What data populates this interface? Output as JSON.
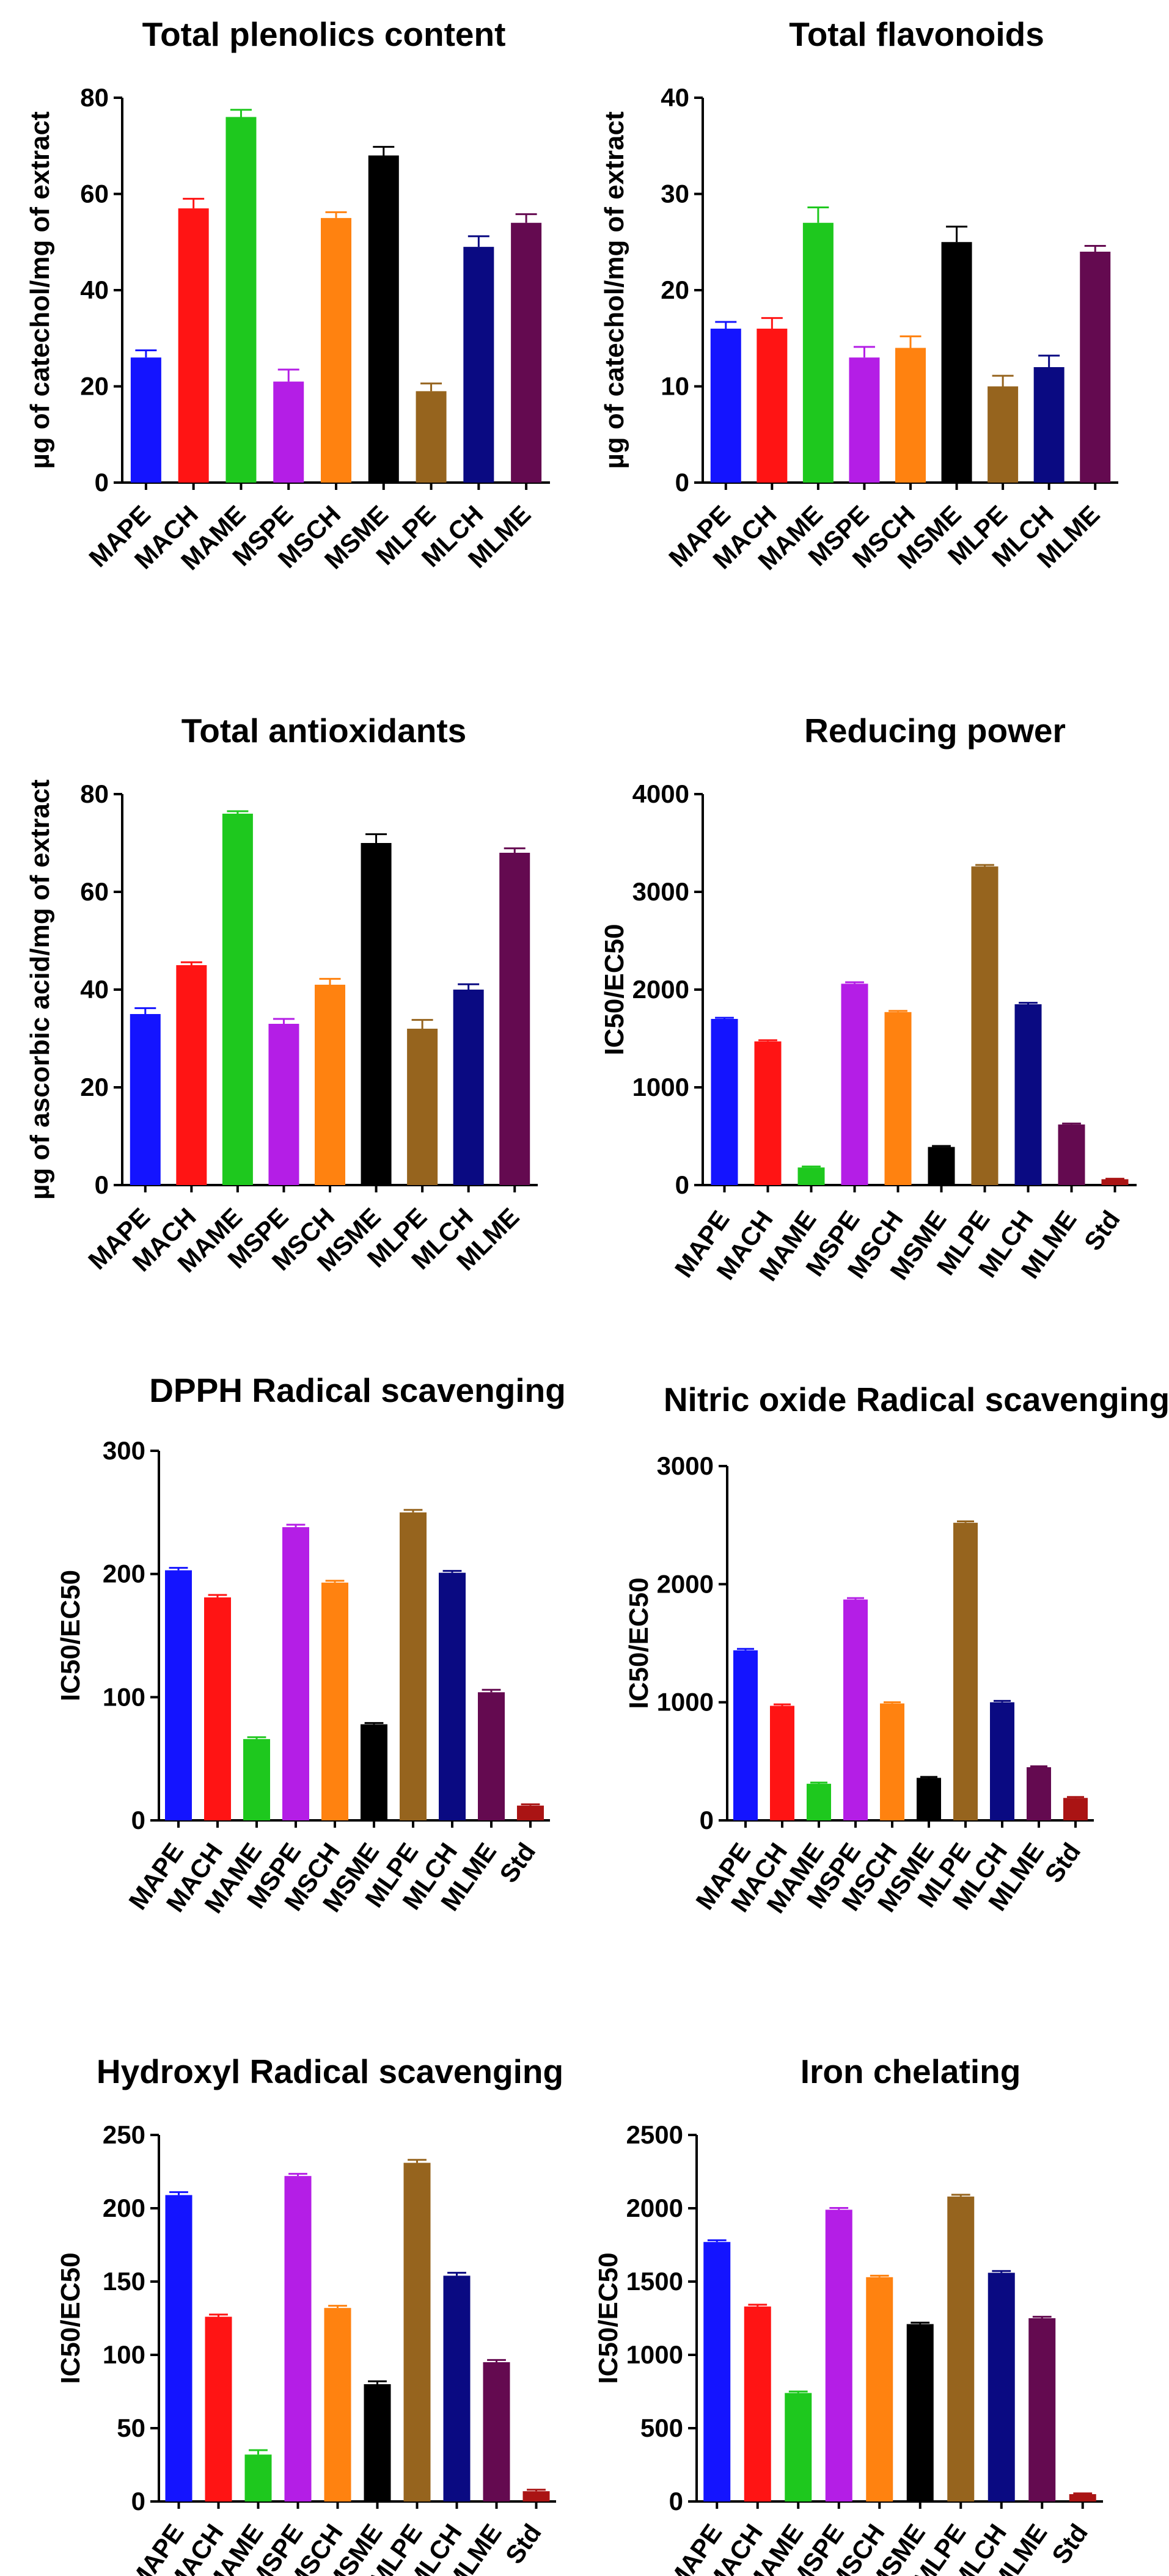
{
  "chart_data": [
    {
      "type": "bar",
      "title": "Total plenolics content",
      "ylabel": "µg of catechol/mg of extract",
      "categories": [
        "MAPE",
        "MACH",
        "MAME",
        "MSPE",
        "MSCH",
        "MSME",
        "MLPE",
        "MLCH",
        "MLME"
      ],
      "values": [
        26,
        57,
        76,
        21,
        55,
        68,
        19,
        49,
        54
      ],
      "errors": [
        1.5,
        2,
        1.5,
        2.5,
        1.2,
        1.8,
        1.6,
        2.2,
        1.8
      ],
      "ylim": [
        0,
        80
      ],
      "yticks": [
        0,
        20,
        40,
        60,
        80
      ]
    },
    {
      "type": "bar",
      "title": "Total flavonoids",
      "ylabel": "µg of catechol/mg of extract",
      "categories": [
        "MAPE",
        "MACH",
        "MAME",
        "MSPE",
        "MSCH",
        "MSME",
        "MLPE",
        "MLCH",
        "MLME"
      ],
      "values": [
        16,
        16,
        27,
        13,
        14,
        25,
        10,
        12,
        24
      ],
      "errors": [
        0.7,
        1.1,
        1.6,
        1.1,
        1.2,
        1.6,
        1.1,
        1.2,
        0.6
      ],
      "ylim": [
        0,
        40
      ],
      "yticks": [
        0,
        10,
        20,
        30,
        40
      ]
    },
    {
      "type": "bar",
      "title": "Total antioxidants",
      "ylabel": "µg of ascorbic acid/mg of extract",
      "categories": [
        "MAPE",
        "MACH",
        "MAME",
        "MSPE",
        "MSCH",
        "MSME",
        "MLPE",
        "MLCH",
        "MLME"
      ],
      "values": [
        35,
        45,
        76,
        33,
        41,
        70,
        32,
        40,
        68
      ],
      "errors": [
        1.2,
        0.6,
        0.5,
        1,
        1.2,
        1.8,
        1.8,
        1.1,
        0.9
      ],
      "ylim": [
        0,
        80
      ],
      "yticks": [
        0,
        20,
        40,
        60,
        80
      ]
    },
    {
      "type": "bar",
      "title": "Reducing power",
      "ylabel": "IC50/EC50",
      "categories": [
        "MAPE",
        "MACH",
        "MAME",
        "MSPE",
        "MSCH",
        "MSME",
        "MLPE",
        "MLCH",
        "MLME",
        "Std"
      ],
      "values": [
        1700,
        1470,
        180,
        2060,
        1770,
        390,
        3260,
        1850,
        620,
        60
      ],
      "errors": [
        12,
        12,
        10,
        15,
        12,
        10,
        15,
        15,
        10,
        5
      ],
      "ylim": [
        0,
        4000
      ],
      "yticks": [
        0,
        1000,
        2000,
        3000,
        4000
      ]
    },
    {
      "type": "bar",
      "title": "DPPH Radical scavenging",
      "ylabel": "IC50/EC50",
      "categories": [
        "MAPE",
        "MACH",
        "MAME",
        "MSPE",
        "MSCH",
        "MSME",
        "MLPE",
        "MLCH",
        "MLME",
        "Std"
      ],
      "values": [
        203,
        181,
        66,
        238,
        193,
        78,
        250,
        201,
        104,
        12
      ],
      "errors": [
        2,
        2,
        1.5,
        2,
        1.5,
        1,
        2,
        1.5,
        2,
        1
      ],
      "ylim": [
        0,
        300
      ],
      "yticks": [
        0,
        100,
        200,
        300
      ]
    },
    {
      "type": "bar",
      "title": "Nitric oxide Radical scavenging",
      "ylabel": "IC50/EC50",
      "categories": [
        "MAPE",
        "MACH",
        "MAME",
        "MSPE",
        "MSCH",
        "MSME",
        "MLPE",
        "MLCH",
        "MLME",
        "Std"
      ],
      "values": [
        1440,
        970,
        310,
        1870,
        990,
        360,
        2520,
        1000,
        450,
        190
      ],
      "errors": [
        12,
        12,
        10,
        12,
        10,
        8,
        12,
        12,
        8,
        8
      ],
      "ylim": [
        0,
        3000
      ],
      "yticks": [
        0,
        1000,
        2000,
        3000
      ]
    },
    {
      "type": "bar",
      "title": "Hydroxyl Radical scavenging",
      "ylabel": "IC50/EC50",
      "categories": [
        "MAPE",
        "MACH",
        "MAME",
        "MSPE",
        "MSCH",
        "MSME",
        "MLPE",
        "MLCH",
        "MLME",
        "Std"
      ],
      "values": [
        209,
        126,
        32,
        222,
        132,
        80,
        231,
        154,
        95,
        7
      ],
      "errors": [
        2,
        1.5,
        3,
        1.5,
        1.5,
        2,
        2,
        2,
        1.5,
        1
      ],
      "ylim": [
        0,
        250
      ],
      "yticks": [
        0,
        50,
        100,
        150,
        200,
        250
      ]
    },
    {
      "type": "bar",
      "title": "Iron chelating",
      "ylabel": "IC50/EC50",
      "categories": [
        "MAPE",
        "MACH",
        "MAME",
        "MSPE",
        "MSCH",
        "MSME",
        "MLPE",
        "MLCH",
        "MLME",
        "Std"
      ],
      "values": [
        1770,
        1330,
        740,
        1990,
        1530,
        1210,
        2080,
        1560,
        1250,
        50
      ],
      "errors": [
        12,
        12,
        10,
        12,
        10,
        10,
        12,
        12,
        10,
        5
      ],
      "ylim": [
        0,
        2500
      ],
      "yticks": [
        0,
        500,
        1000,
        1500,
        2000,
        2500
      ]
    }
  ],
  "bar_colors": {
    "MAPE": "#1414ff",
    "MACH": "#ff1414",
    "MAME": "#1ec81e",
    "MSPE": "#b41ee6",
    "MSCH": "#ff8210",
    "MSME": "#000000",
    "MLPE": "#96641e",
    "MLCH": "#0a0a82",
    "MLME": "#640a50",
    "Std": "#aa1414"
  }
}
